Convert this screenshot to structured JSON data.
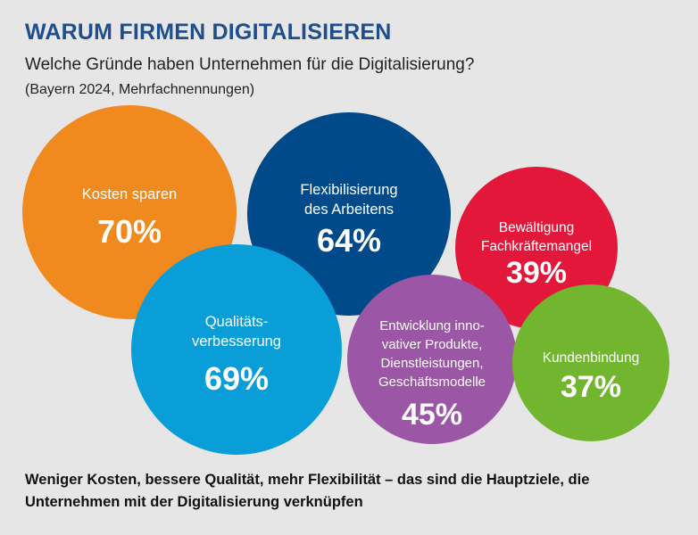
{
  "header": {
    "title": "WARUM FIRMEN DIGITALISIEREN",
    "subtitle": "Welche Gründe haben Unternehmen für die Digitalisierung?",
    "note": "(Bayern 2024, Mehrfachnennungen)"
  },
  "chart_data": {
    "type": "bubble",
    "title": "WARUM FIRMEN DIGITALISIEREN",
    "subtitle": "Welche Gründe haben Unternehmen für die Digitalisierung?",
    "unit": "%",
    "bubbles": [
      {
        "label_lines": [
          "Kosten sparen"
        ],
        "value": 70,
        "value_text": "70%",
        "color": "#f08a1e"
      },
      {
        "label_lines": [
          "Flexibilisierung",
          "des Arbeitens"
        ],
        "value": 64,
        "value_text": "64%",
        "color": "#004a8a"
      },
      {
        "label_lines": [
          "Bewältigung",
          "Fachkräftemangel"
        ],
        "value": 39,
        "value_text": "39%",
        "color": "#e3173a"
      },
      {
        "label_lines": [
          "Qualitäts-",
          "verbesserung"
        ],
        "value": 69,
        "value_text": "69%",
        "color": "#0a9ed9"
      },
      {
        "label_lines": [
          "Entwicklung inno-",
          "vativer Produkte,",
          "Dienstleistungen,",
          "Geschäftsmodelle"
        ],
        "value": 45,
        "value_text": "45%",
        "color": "#9b56a6"
      },
      {
        "label_lines": [
          "Kundenbindung"
        ],
        "value": 37,
        "value_text": "37%",
        "color": "#72b62f"
      }
    ]
  },
  "footer": {
    "text": "Weniger Kosten, bessere Qualität, mehr Flexibilität – das sind die Hauptziele, die Unternehmen mit der Digitalisierung verknüpfen"
  }
}
